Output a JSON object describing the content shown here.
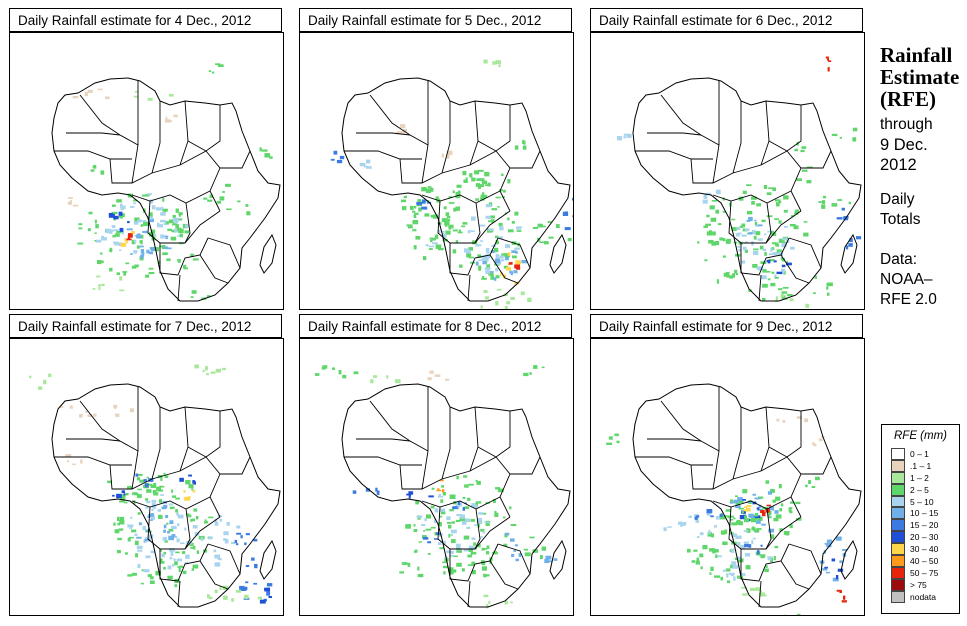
{
  "panels": [
    {
      "title": "Daily Rainfall estimate for  4 Dec., 2012"
    },
    {
      "title": "Daily Rainfall estimate for  5 Dec., 2012"
    },
    {
      "title": "Daily Rainfall estimate for  6 Dec., 2012"
    },
    {
      "title": "Daily Rainfall estimate for  7 Dec., 2012"
    },
    {
      "title": "Daily Rainfall estimate for  8 Dec., 2012"
    },
    {
      "title": "Daily Rainfall estimate for  9 Dec., 2012"
    }
  ],
  "sidebar": {
    "title_line1": "Rainfall",
    "title_line2": "Estimate",
    "title_line3": "(RFE)",
    "through_label": "through",
    "date_line1": "9 Dec.",
    "date_line2": "2012",
    "totals_line1": "Daily",
    "totals_line2": "Totals",
    "source_line1": "Data:",
    "source_line2": "NOAA–",
    "source_line3": "RFE 2.0"
  },
  "legend": {
    "title": "RFE (mm)",
    "items": [
      {
        "label": "0 – 1",
        "color": "#ffffff"
      },
      {
        "label": ".1 – 1",
        "color": "#e8d3bd"
      },
      {
        "label": "1 – 2",
        "color": "#a8e89a"
      },
      {
        "label": "2 – 5",
        "color": "#5fd66a"
      },
      {
        "label": "5 – 10",
        "color": "#a8d4ee"
      },
      {
        "label": "10 – 15",
        "color": "#6fb0e8"
      },
      {
        "label": "15 – 20",
        "color": "#3b7ae0"
      },
      {
        "label": "20 – 30",
        "color": "#1f4fd6"
      },
      {
        "label": "30 – 40",
        "color": "#ffd54a"
      },
      {
        "label": "40 – 50",
        "color": "#ff9a1a"
      },
      {
        "label": "50 – 75",
        "color": "#e8240c"
      },
      {
        "label": "> 75",
        "color": "#9c0c0c"
      },
      {
        "label": "nodata",
        "color": "#c0c0c0"
      }
    ]
  }
}
